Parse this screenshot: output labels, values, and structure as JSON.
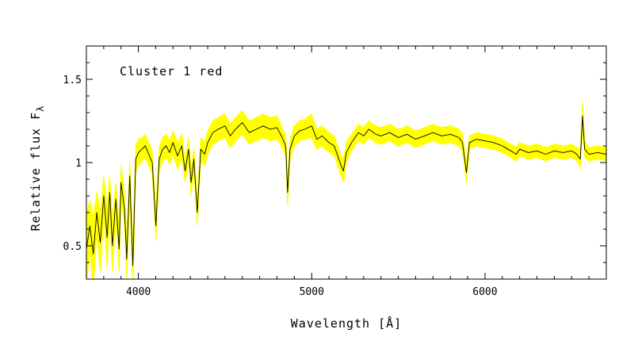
{
  "chart_data": {
    "type": "line",
    "annotation": "Cluster 1 red",
    "xlabel": "Wavelength  [Å]",
    "ylabel": "Relative flux F",
    "ylabel_subscript": "λ",
    "xlim": [
      3700,
      6700
    ],
    "ylim": [
      0.3,
      1.7
    ],
    "x_ticks": [
      4000,
      5000,
      6000
    ],
    "x_tick_labels": [
      "4000",
      "5000",
      "6000"
    ],
    "y_ticks": [
      0.5,
      1,
      1.5
    ],
    "y_tick_labels": [
      "0.5",
      "1",
      "1.5"
    ],
    "grid": false,
    "colors": {
      "band": "#ffff00",
      "line": "#000000"
    },
    "series": [
      {
        "values_description": "mean spectrum (black line) with yellow dispersion band",
        "x": [
          3700,
          3720,
          3740,
          3760,
          3780,
          3800,
          3820,
          3835,
          3850,
          3870,
          3889,
          3900,
          3920,
          3933,
          3950,
          3968,
          3985,
          4000,
          4020,
          4040,
          4060,
          4080,
          4101,
          4120,
          4140,
          4160,
          4180,
          4200,
          4226,
          4250,
          4270,
          4290,
          4304,
          4320,
          4340,
          4360,
          4383,
          4400,
          4430,
          4460,
          4500,
          4530,
          4560,
          4600,
          4640,
          4680,
          4720,
          4760,
          4800,
          4830,
          4850,
          4861,
          4875,
          4900,
          4930,
          4960,
          5000,
          5030,
          5060,
          5100,
          5130,
          5150,
          5170,
          5183,
          5200,
          5230,
          5270,
          5300,
          5330,
          5370,
          5400,
          5450,
          5500,
          5550,
          5600,
          5650,
          5700,
          5750,
          5800,
          5850,
          5870,
          5893,
          5910,
          5950,
          6000,
          6050,
          6100,
          6150,
          6180,
          6200,
          6250,
          6300,
          6350,
          6400,
          6450,
          6500,
          6530,
          6550,
          6563,
          6575,
          6600,
          6650,
          6700
        ],
        "y": [
          0.48,
          0.62,
          0.45,
          0.7,
          0.52,
          0.8,
          0.55,
          0.82,
          0.5,
          0.78,
          0.48,
          0.88,
          0.72,
          0.42,
          0.92,
          0.38,
          1.02,
          1.06,
          1.08,
          1.1,
          1.05,
          1.0,
          0.62,
          1.02,
          1.08,
          1.1,
          1.06,
          1.12,
          1.04,
          1.1,
          0.95,
          1.08,
          0.88,
          1.02,
          0.7,
          1.08,
          1.05,
          1.12,
          1.18,
          1.2,
          1.22,
          1.16,
          1.2,
          1.24,
          1.18,
          1.2,
          1.22,
          1.2,
          1.21,
          1.15,
          1.1,
          0.82,
          1.08,
          1.16,
          1.19,
          1.2,
          1.22,
          1.14,
          1.16,
          1.12,
          1.1,
          1.04,
          0.98,
          0.95,
          1.06,
          1.12,
          1.18,
          1.16,
          1.2,
          1.17,
          1.16,
          1.18,
          1.15,
          1.17,
          1.14,
          1.16,
          1.18,
          1.16,
          1.17,
          1.15,
          1.12,
          0.94,
          1.12,
          1.14,
          1.13,
          1.12,
          1.1,
          1.07,
          1.05,
          1.08,
          1.06,
          1.07,
          1.05,
          1.07,
          1.06,
          1.07,
          1.05,
          1.02,
          1.28,
          1.08,
          1.05,
          1.06,
          1.05
        ],
        "band": [
          0.22,
          0.15,
          0.22,
          0.12,
          0.18,
          0.12,
          0.18,
          0.1,
          0.16,
          0.1,
          0.14,
          0.1,
          0.1,
          0.12,
          0.09,
          0.12,
          0.08,
          0.08,
          0.07,
          0.07,
          0.07,
          0.07,
          0.09,
          0.07,
          0.07,
          0.07,
          0.07,
          0.07,
          0.08,
          0.07,
          0.07,
          0.07,
          0.08,
          0.07,
          0.08,
          0.07,
          0.07,
          0.07,
          0.07,
          0.07,
          0.07,
          0.07,
          0.07,
          0.07,
          0.07,
          0.07,
          0.07,
          0.07,
          0.07,
          0.06,
          0.06,
          0.08,
          0.06,
          0.06,
          0.06,
          0.06,
          0.07,
          0.06,
          0.06,
          0.06,
          0.06,
          0.06,
          0.06,
          0.07,
          0.06,
          0.05,
          0.05,
          0.05,
          0.05,
          0.05,
          0.05,
          0.05,
          0.05,
          0.05,
          0.05,
          0.05,
          0.05,
          0.05,
          0.05,
          0.05,
          0.05,
          0.06,
          0.04,
          0.04,
          0.04,
          0.04,
          0.04,
          0.04,
          0.04,
          0.04,
          0.04,
          0.04,
          0.04,
          0.04,
          0.04,
          0.04,
          0.04,
          0.05,
          0.08,
          0.05,
          0.04,
          0.04,
          0.04
        ]
      }
    ]
  }
}
